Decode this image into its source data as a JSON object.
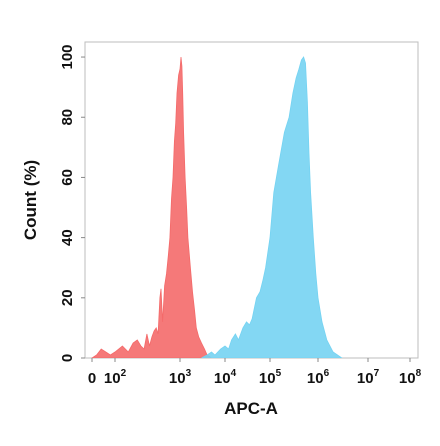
{
  "chart_data": {
    "type": "area",
    "title": "",
    "xlabel": "APC-A",
    "ylabel": "Count  (%)",
    "x_scale": "biexponential",
    "ylim": [
      0,
      105
    ],
    "grid": false,
    "legend": "none",
    "x_ticks": [
      {
        "value": 0,
        "base": "0",
        "exp": ""
      },
      {
        "value": 100,
        "base": "10",
        "exp": "2"
      },
      {
        "value": 1000,
        "base": "10",
        "exp": "3"
      },
      {
        "value": 10000,
        "base": "10",
        "exp": "4"
      },
      {
        "value": 100000,
        "base": "10",
        "exp": "5"
      },
      {
        "value": 1000000,
        "base": "10",
        "exp": "6"
      },
      {
        "value": 10000000,
        "base": "10",
        "exp": "7"
      },
      {
        "value": 100000000,
        "base": "10",
        "exp": "8"
      }
    ],
    "y_ticks": [
      0,
      20,
      40,
      60,
      80,
      100
    ],
    "series": [
      {
        "color": "#f46a6a",
        "points": [
          [
            0,
            0
          ],
          [
            20,
            1
          ],
          [
            40,
            3
          ],
          [
            60,
            2
          ],
          [
            80,
            1
          ],
          [
            100,
            2
          ],
          [
            130,
            4
          ],
          [
            160,
            2
          ],
          [
            190,
            5
          ],
          [
            220,
            6
          ],
          [
            250,
            4
          ],
          [
            280,
            3
          ],
          [
            310,
            8
          ],
          [
            340,
            4
          ],
          [
            370,
            7
          ],
          [
            400,
            9
          ],
          [
            430,
            10
          ],
          [
            460,
            8
          ],
          [
            490,
            20
          ],
          [
            510,
            23
          ],
          [
            540,
            12
          ],
          [
            580,
            24
          ],
          [
            620,
            28
          ],
          [
            660,
            34
          ],
          [
            700,
            40
          ],
          [
            740,
            53
          ],
          [
            780,
            60
          ],
          [
            820,
            72
          ],
          [
            860,
            78
          ],
          [
            900,
            88
          ],
          [
            950,
            94
          ],
          [
            1000,
            96
          ],
          [
            1050,
            100
          ],
          [
            1100,
            97
          ],
          [
            1150,
            88
          ],
          [
            1200,
            75
          ],
          [
            1300,
            60
          ],
          [
            1400,
            50
          ],
          [
            1500,
            40
          ],
          [
            1700,
            30
          ],
          [
            1900,
            22
          ],
          [
            2100,
            16
          ],
          [
            2300,
            10
          ],
          [
            2600,
            7
          ],
          [
            3000,
            5
          ],
          [
            3500,
            3
          ],
          [
            4000,
            1
          ],
          [
            5000,
            0
          ]
        ]
      },
      {
        "color": "#75d3f2",
        "points": [
          [
            3000,
            0
          ],
          [
            4000,
            1
          ],
          [
            5000,
            2
          ],
          [
            6000,
            1
          ],
          [
            8000,
            3
          ],
          [
            10000,
            4
          ],
          [
            12000,
            3
          ],
          [
            14000,
            6
          ],
          [
            17000,
            8
          ],
          [
            20000,
            6
          ],
          [
            25000,
            10
          ],
          [
            30000,
            12
          ],
          [
            35000,
            11
          ],
          [
            40000,
            13
          ],
          [
            50000,
            20
          ],
          [
            60000,
            22
          ],
          [
            70000,
            26
          ],
          [
            80000,
            30
          ],
          [
            100000,
            40
          ],
          [
            120000,
            55
          ],
          [
            150000,
            64
          ],
          [
            200000,
            75
          ],
          [
            250000,
            80
          ],
          [
            300000,
            88
          ],
          [
            350000,
            93
          ],
          [
            400000,
            96
          ],
          [
            450000,
            99
          ],
          [
            500000,
            100
          ],
          [
            550000,
            98
          ],
          [
            600000,
            85
          ],
          [
            650000,
            68
          ],
          [
            700000,
            55
          ],
          [
            800000,
            40
          ],
          [
            900000,
            28
          ],
          [
            1000000,
            20
          ],
          [
            1200000,
            12
          ],
          [
            1500000,
            6
          ],
          [
            2000000,
            2
          ],
          [
            3000000,
            0
          ]
        ]
      }
    ]
  }
}
